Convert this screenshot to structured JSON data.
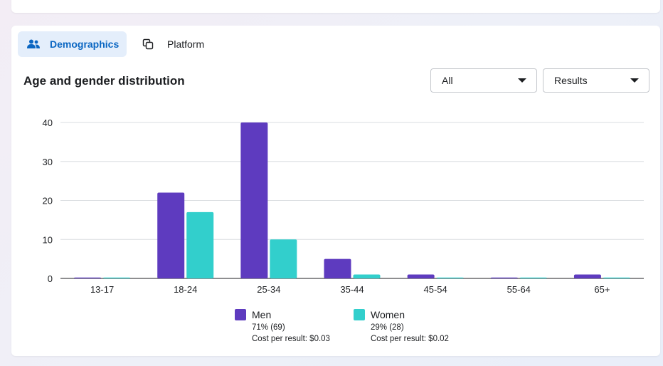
{
  "tabs": [
    {
      "label": "Demographics",
      "icon": "people-icon",
      "active": true
    },
    {
      "label": "Platform",
      "icon": "overlap-squares-icon",
      "active": false
    }
  ],
  "filters": {
    "audience": {
      "selected": "All"
    },
    "metric": {
      "selected": "Results"
    }
  },
  "colors": {
    "men": "#5e3bbf",
    "women": "#32cfcc",
    "accent": "#0a66c2"
  },
  "chart_data": {
    "type": "bar",
    "title": "Age and gender distribution",
    "categories": [
      "13-17",
      "18-24",
      "25-34",
      "35-44",
      "45-54",
      "55-64",
      "65+"
    ],
    "series": [
      {
        "name": "Men",
        "values": [
          0,
          22,
          40,
          5,
          1,
          0,
          1
        ]
      },
      {
        "name": "Women",
        "values": [
          0,
          17,
          10,
          1,
          0,
          0,
          0
        ]
      }
    ],
    "yticks": [
      0,
      10,
      20,
      30,
      40
    ],
    "ylim": [
      0,
      40
    ],
    "grid": true,
    "legend": [
      {
        "name": "Men",
        "share": "71% (69)",
        "cost": "Cost per result: $0.03"
      },
      {
        "name": "Women",
        "share": "29% (28)",
        "cost": "Cost per result: $0.02"
      }
    ],
    "legend_position": "bottom"
  }
}
